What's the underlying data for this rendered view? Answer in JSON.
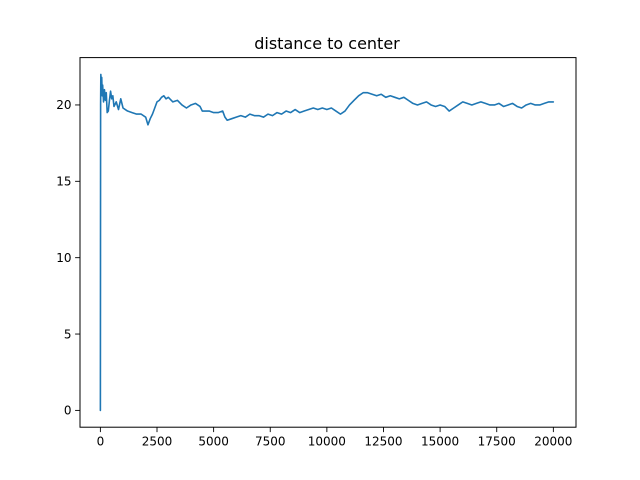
{
  "chart_data": {
    "type": "line",
    "title": "distance to center",
    "xlabel": "",
    "ylabel": "",
    "xlim": [
      -900,
      21000
    ],
    "ylim": [
      -1.1,
      23.1
    ],
    "xticks": [
      0,
      2500,
      5000,
      7500,
      10000,
      12500,
      15000,
      17500,
      20000
    ],
    "xtick_labels": [
      "0",
      "2500",
      "5000",
      "7500",
      "10000",
      "12500",
      "15000",
      "17500",
      "20000"
    ],
    "yticks": [
      0,
      5,
      10,
      15,
      20
    ],
    "ytick_labels": [
      "0",
      "5",
      "10",
      "15",
      "20"
    ],
    "grid": false,
    "legend": "none",
    "series": [
      {
        "color": "#1f77b4",
        "x": [
          0,
          10,
          20,
          40,
          60,
          80,
          100,
          140,
          180,
          220,
          260,
          300,
          350,
          400,
          450,
          500,
          550,
          600,
          700,
          800,
          900,
          1000,
          1100,
          1200,
          1400,
          1600,
          1800,
          2000,
          2100,
          2200,
          2300,
          2400,
          2500,
          2600,
          2700,
          2800,
          2900,
          3000,
          3200,
          3400,
          3600,
          3800,
          4000,
          4200,
          4400,
          4500,
          4600,
          4800,
          5000,
          5200,
          5400,
          5500,
          5600,
          5800,
          6000,
          6200,
          6400,
          6600,
          6800,
          7000,
          7200,
          7400,
          7600,
          7800,
          8000,
          8200,
          8400,
          8600,
          8800,
          9000,
          9200,
          9400,
          9600,
          9800,
          10000,
          10200,
          10400,
          10600,
          10800,
          11000,
          11200,
          11400,
          11600,
          11800,
          12000,
          12200,
          12400,
          12600,
          12800,
          13000,
          13200,
          13400,
          13600,
          13800,
          14000,
          14200,
          14400,
          14600,
          14800,
          15000,
          15200,
          15400,
          15600,
          15800,
          16000,
          16200,
          16400,
          16600,
          16800,
          17000,
          17200,
          17400,
          17600,
          17800,
          18000,
          18200,
          18400,
          18600,
          18800,
          19000,
          19200,
          19400,
          19600,
          19800,
          20000
        ],
        "y": [
          0,
          20.0,
          22.0,
          21.2,
          21.8,
          20.6,
          21.3,
          20.2,
          21.0,
          20.3,
          20.8,
          19.5,
          19.6,
          20.3,
          20.9,
          20.4,
          20.6,
          19.9,
          20.2,
          19.7,
          20.4,
          19.8,
          19.7,
          19.6,
          19.5,
          19.4,
          19.4,
          19.2,
          18.7,
          19.1,
          19.4,
          19.8,
          20.2,
          20.3,
          20.5,
          20.6,
          20.4,
          20.5,
          20.2,
          20.3,
          20.0,
          19.8,
          20.0,
          20.1,
          19.9,
          19.6,
          19.6,
          19.6,
          19.5,
          19.5,
          19.6,
          19.2,
          19.0,
          19.1,
          19.2,
          19.3,
          19.2,
          19.4,
          19.3,
          19.3,
          19.2,
          19.4,
          19.3,
          19.5,
          19.4,
          19.6,
          19.5,
          19.7,
          19.5,
          19.6,
          19.7,
          19.8,
          19.7,
          19.8,
          19.7,
          19.8,
          19.6,
          19.4,
          19.6,
          20.0,
          20.3,
          20.6,
          20.8,
          20.8,
          20.7,
          20.6,
          20.7,
          20.5,
          20.6,
          20.5,
          20.4,
          20.5,
          20.3,
          20.1,
          20.0,
          20.1,
          20.2,
          20.0,
          19.9,
          20.0,
          19.9,
          19.6,
          19.8,
          20.0,
          20.2,
          20.1,
          20.0,
          20.1,
          20.2,
          20.1,
          20.0,
          20.0,
          20.1,
          19.9,
          20.0,
          20.1,
          19.9,
          19.8,
          20.0,
          20.1,
          20.0,
          20.0,
          20.1,
          20.2,
          20.2
        ]
      }
    ]
  }
}
